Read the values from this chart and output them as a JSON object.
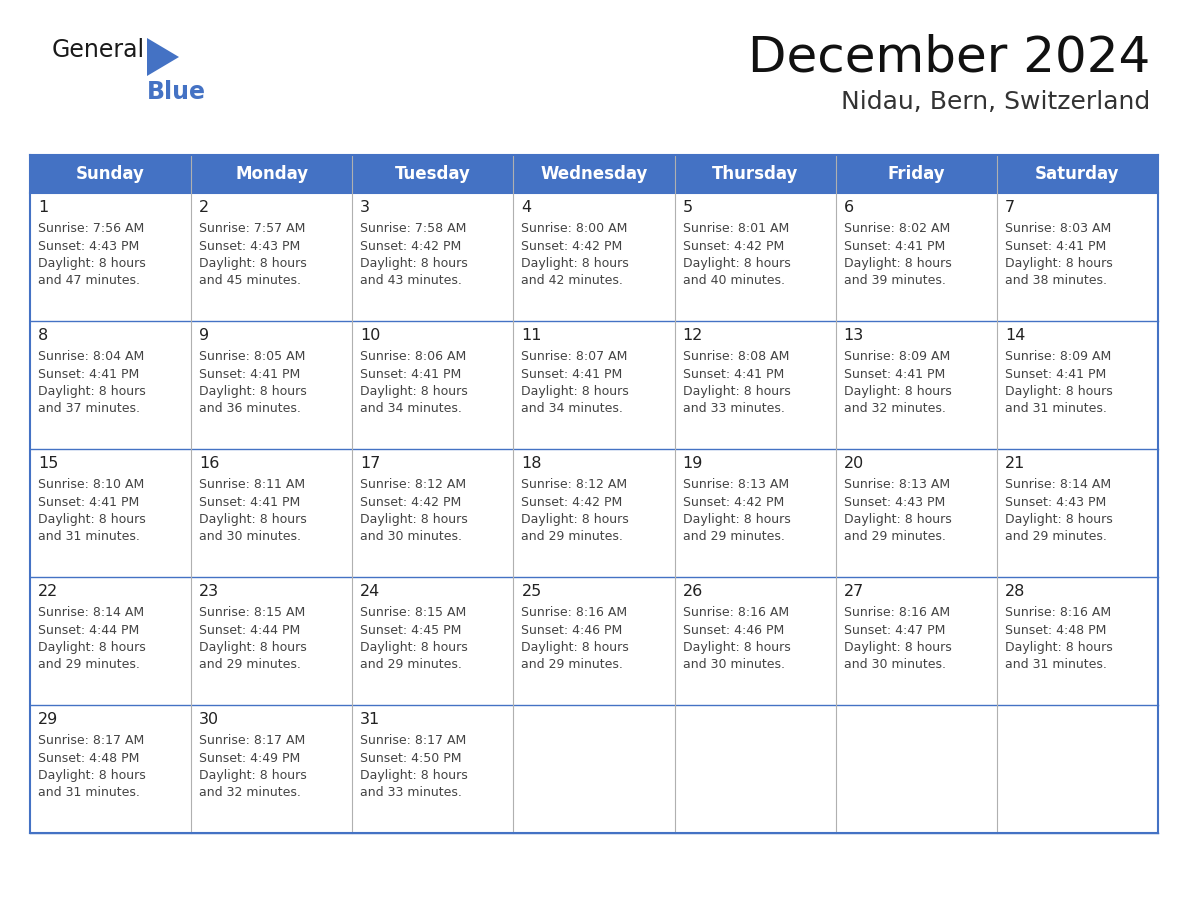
{
  "title": "December 2024",
  "subtitle": "Nidau, Bern, Switzerland",
  "header_bg": "#4472C4",
  "header_text_color": "#FFFFFF",
  "border_color": "#4472C4",
  "row_line_color": "#4472C4",
  "col_line_color": "#b0b0b0",
  "text_color": "#222222",
  "info_text_color": "#444444",
  "day_names": [
    "Sunday",
    "Monday",
    "Tuesday",
    "Wednesday",
    "Thursday",
    "Friday",
    "Saturday"
  ],
  "days": [
    {
      "day": 1,
      "col": 0,
      "row": 0,
      "sunrise": "7:56 AM",
      "sunset": "4:43 PM",
      "daylight_min": "47"
    },
    {
      "day": 2,
      "col": 1,
      "row": 0,
      "sunrise": "7:57 AM",
      "sunset": "4:43 PM",
      "daylight_min": "45"
    },
    {
      "day": 3,
      "col": 2,
      "row": 0,
      "sunrise": "7:58 AM",
      "sunset": "4:42 PM",
      "daylight_min": "43"
    },
    {
      "day": 4,
      "col": 3,
      "row": 0,
      "sunrise": "8:00 AM",
      "sunset": "4:42 PM",
      "daylight_min": "42"
    },
    {
      "day": 5,
      "col": 4,
      "row": 0,
      "sunrise": "8:01 AM",
      "sunset": "4:42 PM",
      "daylight_min": "40"
    },
    {
      "day": 6,
      "col": 5,
      "row": 0,
      "sunrise": "8:02 AM",
      "sunset": "4:41 PM",
      "daylight_min": "39"
    },
    {
      "day": 7,
      "col": 6,
      "row": 0,
      "sunrise": "8:03 AM",
      "sunset": "4:41 PM",
      "daylight_min": "38"
    },
    {
      "day": 8,
      "col": 0,
      "row": 1,
      "sunrise": "8:04 AM",
      "sunset": "4:41 PM",
      "daylight_min": "37"
    },
    {
      "day": 9,
      "col": 1,
      "row": 1,
      "sunrise": "8:05 AM",
      "sunset": "4:41 PM",
      "daylight_min": "36"
    },
    {
      "day": 10,
      "col": 2,
      "row": 1,
      "sunrise": "8:06 AM",
      "sunset": "4:41 PM",
      "daylight_min": "34"
    },
    {
      "day": 11,
      "col": 3,
      "row": 1,
      "sunrise": "8:07 AM",
      "sunset": "4:41 PM",
      "daylight_min": "34"
    },
    {
      "day": 12,
      "col": 4,
      "row": 1,
      "sunrise": "8:08 AM",
      "sunset": "4:41 PM",
      "daylight_min": "33"
    },
    {
      "day": 13,
      "col": 5,
      "row": 1,
      "sunrise": "8:09 AM",
      "sunset": "4:41 PM",
      "daylight_min": "32"
    },
    {
      "day": 14,
      "col": 6,
      "row": 1,
      "sunrise": "8:09 AM",
      "sunset": "4:41 PM",
      "daylight_min": "31"
    },
    {
      "day": 15,
      "col": 0,
      "row": 2,
      "sunrise": "8:10 AM",
      "sunset": "4:41 PM",
      "daylight_min": "31"
    },
    {
      "day": 16,
      "col": 1,
      "row": 2,
      "sunrise": "8:11 AM",
      "sunset": "4:41 PM",
      "daylight_min": "30"
    },
    {
      "day": 17,
      "col": 2,
      "row": 2,
      "sunrise": "8:12 AM",
      "sunset": "4:42 PM",
      "daylight_min": "30"
    },
    {
      "day": 18,
      "col": 3,
      "row": 2,
      "sunrise": "8:12 AM",
      "sunset": "4:42 PM",
      "daylight_min": "29"
    },
    {
      "day": 19,
      "col": 4,
      "row": 2,
      "sunrise": "8:13 AM",
      "sunset": "4:42 PM",
      "daylight_min": "29"
    },
    {
      "day": 20,
      "col": 5,
      "row": 2,
      "sunrise": "8:13 AM",
      "sunset": "4:43 PM",
      "daylight_min": "29"
    },
    {
      "day": 21,
      "col": 6,
      "row": 2,
      "sunrise": "8:14 AM",
      "sunset": "4:43 PM",
      "daylight_min": "29"
    },
    {
      "day": 22,
      "col": 0,
      "row": 3,
      "sunrise": "8:14 AM",
      "sunset": "4:44 PM",
      "daylight_min": "29"
    },
    {
      "day": 23,
      "col": 1,
      "row": 3,
      "sunrise": "8:15 AM",
      "sunset": "4:44 PM",
      "daylight_min": "29"
    },
    {
      "day": 24,
      "col": 2,
      "row": 3,
      "sunrise": "8:15 AM",
      "sunset": "4:45 PM",
      "daylight_min": "29"
    },
    {
      "day": 25,
      "col": 3,
      "row": 3,
      "sunrise": "8:16 AM",
      "sunset": "4:46 PM",
      "daylight_min": "29"
    },
    {
      "day": 26,
      "col": 4,
      "row": 3,
      "sunrise": "8:16 AM",
      "sunset": "4:46 PM",
      "daylight_min": "30"
    },
    {
      "day": 27,
      "col": 5,
      "row": 3,
      "sunrise": "8:16 AM",
      "sunset": "4:47 PM",
      "daylight_min": "30"
    },
    {
      "day": 28,
      "col": 6,
      "row": 3,
      "sunrise": "8:16 AM",
      "sunset": "4:48 PM",
      "daylight_min": "31"
    },
    {
      "day": 29,
      "col": 0,
      "row": 4,
      "sunrise": "8:17 AM",
      "sunset": "4:48 PM",
      "daylight_min": "31"
    },
    {
      "day": 30,
      "col": 1,
      "row": 4,
      "sunrise": "8:17 AM",
      "sunset": "4:49 PM",
      "daylight_min": "32"
    },
    {
      "day": 31,
      "col": 2,
      "row": 4,
      "sunrise": "8:17 AM",
      "sunset": "4:50 PM",
      "daylight_min": "33"
    }
  ],
  "num_rows": 5,
  "logo_triangle_color": "#4472C4",
  "logo_general_color": "#1a1a1a",
  "logo_blue_color": "#4472C4",
  "fig_width": 11.88,
  "fig_height": 9.18,
  "dpi": 100
}
